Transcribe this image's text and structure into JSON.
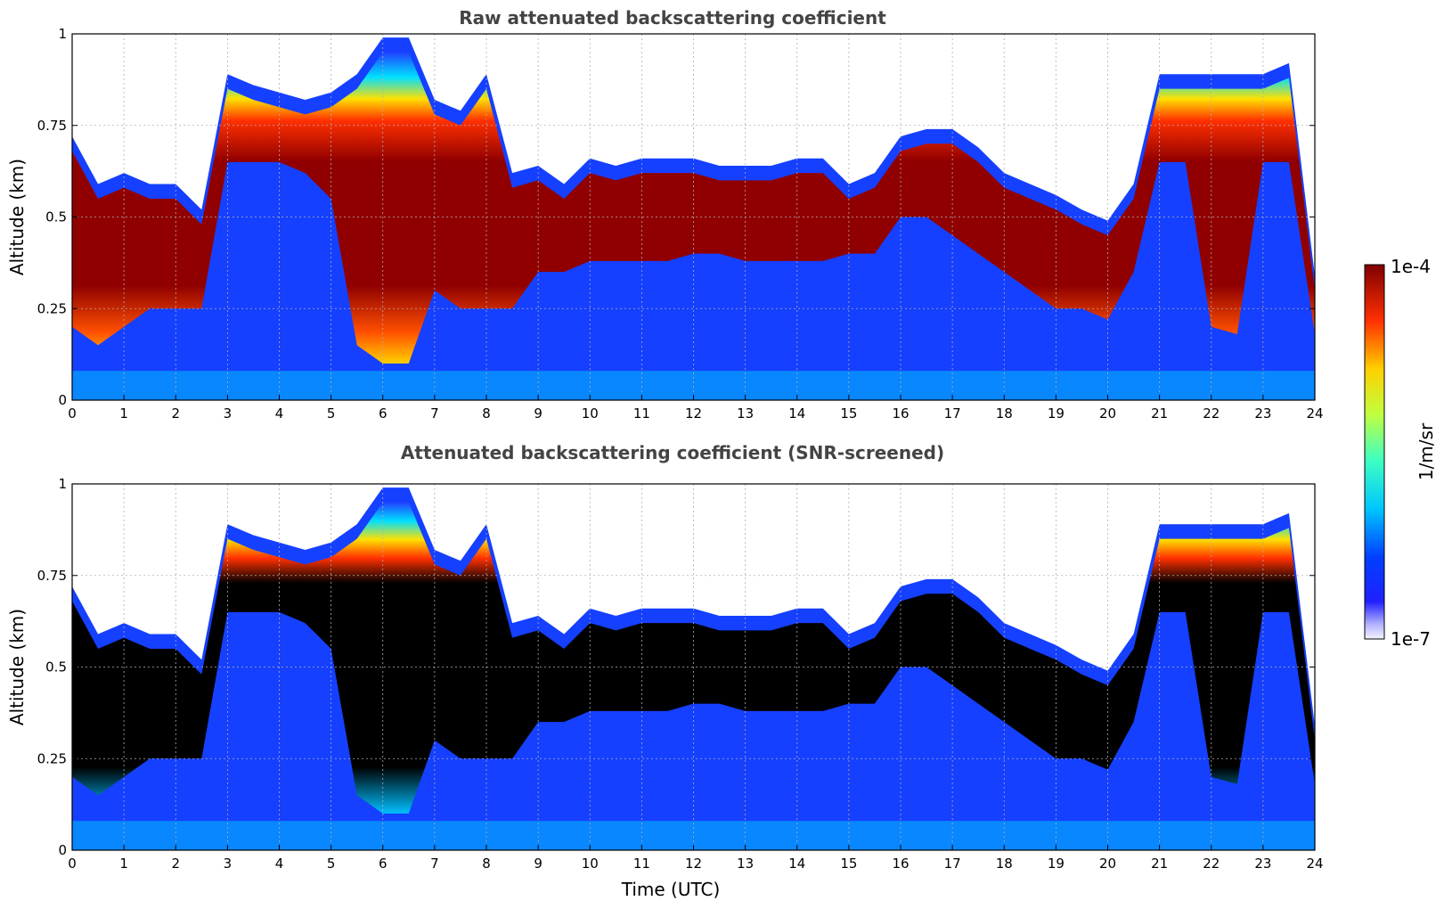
{
  "chart_data": [
    {
      "type": "heatmap",
      "title": "Raw attenuated backscattering coefficient",
      "xlabel": "",
      "ylabel": "Altitude (km)",
      "xlim": [
        0,
        24
      ],
      "ylim": [
        0,
        1
      ],
      "x_ticks": [
        0,
        1,
        2,
        3,
        4,
        5,
        6,
        7,
        8,
        9,
        10,
        11,
        12,
        13,
        14,
        15,
        16,
        17,
        18,
        19,
        20,
        21,
        22,
        23,
        24
      ],
      "y_ticks": [
        "0",
        "0.25",
        "0.5",
        "0.75",
        "1"
      ],
      "y_tick_values": [
        0,
        0.25,
        0.5,
        0.75,
        1
      ],
      "grid": true,
      "cloud_layer": {
        "x": [
          0,
          0.5,
          1,
          1.5,
          2,
          2.5,
          3,
          3.5,
          4,
          4.5,
          5,
          5.5,
          6,
          6.5,
          7,
          7.5,
          8,
          8.5,
          9,
          9.5,
          10,
          10.5,
          11,
          11.5,
          12,
          12.5,
          13,
          13.5,
          14,
          14.5,
          15,
          15.5,
          16,
          16.5,
          17,
          17.5,
          18,
          18.5,
          19,
          19.5,
          20,
          20.5,
          21,
          21.5,
          22,
          22.5,
          23,
          23.5,
          24
        ],
        "top_km": [
          0.68,
          0.55,
          0.58,
          0.55,
          0.55,
          0.48,
          0.85,
          0.82,
          0.8,
          0.78,
          0.8,
          0.85,
          0.95,
          0.95,
          0.78,
          0.75,
          0.85,
          0.58,
          0.6,
          0.55,
          0.62,
          0.6,
          0.62,
          0.62,
          0.62,
          0.6,
          0.6,
          0.6,
          0.62,
          0.62,
          0.55,
          0.58,
          0.68,
          0.7,
          0.7,
          0.65,
          0.58,
          0.55,
          0.52,
          0.48,
          0.45,
          0.55,
          0.85,
          0.85,
          0.85,
          0.85,
          0.85,
          0.88,
          0.3
        ],
        "base_km": [
          0.2,
          0.15,
          0.2,
          0.25,
          0.25,
          0.25,
          0.65,
          0.65,
          0.65,
          0.62,
          0.55,
          0.15,
          0.1,
          0.1,
          0.3,
          0.25,
          0.25,
          0.25,
          0.35,
          0.35,
          0.38,
          0.38,
          0.38,
          0.38,
          0.4,
          0.4,
          0.38,
          0.38,
          0.38,
          0.38,
          0.4,
          0.4,
          0.5,
          0.5,
          0.45,
          0.4,
          0.35,
          0.3,
          0.25,
          0.25,
          0.22,
          0.35,
          0.65,
          0.65,
          0.2,
          0.18,
          0.65,
          0.65,
          0.18
        ]
      }
    },
    {
      "type": "heatmap",
      "title": "Attenuated backscattering coefficient (SNR-screened)",
      "xlabel": "Time (UTC)",
      "ylabel": "Altitude (km)",
      "xlim": [
        0,
        24
      ],
      "ylim": [
        0,
        1
      ],
      "x_ticks": [
        0,
        1,
        2,
        3,
        4,
        5,
        6,
        7,
        8,
        9,
        10,
        11,
        12,
        13,
        14,
        15,
        16,
        17,
        18,
        19,
        20,
        21,
        22,
        23,
        24
      ],
      "y_ticks": [
        "0",
        "0.25",
        "0.5",
        "0.75",
        "1"
      ],
      "y_tick_values": [
        0,
        0.25,
        0.5,
        0.75,
        1
      ],
      "grid": true,
      "cloud_layer": {
        "x": [
          0,
          0.5,
          1,
          1.5,
          2,
          2.5,
          3,
          3.5,
          4,
          4.5,
          5,
          5.5,
          6,
          6.5,
          7,
          7.5,
          8,
          8.5,
          9,
          9.5,
          10,
          10.5,
          11,
          11.5,
          12,
          12.5,
          13,
          13.5,
          14,
          14.5,
          15,
          15.5,
          16,
          16.5,
          17,
          17.5,
          18,
          18.5,
          19,
          19.5,
          20,
          20.5,
          21,
          21.5,
          22,
          22.5,
          23,
          23.5,
          24
        ],
        "top_km": [
          0.68,
          0.55,
          0.58,
          0.55,
          0.55,
          0.48,
          0.85,
          0.82,
          0.8,
          0.78,
          0.8,
          0.85,
          0.95,
          0.95,
          0.78,
          0.75,
          0.85,
          0.58,
          0.6,
          0.55,
          0.62,
          0.6,
          0.62,
          0.62,
          0.62,
          0.6,
          0.6,
          0.6,
          0.62,
          0.62,
          0.55,
          0.58,
          0.68,
          0.7,
          0.7,
          0.65,
          0.58,
          0.55,
          0.52,
          0.48,
          0.45,
          0.55,
          0.85,
          0.85,
          0.85,
          0.85,
          0.85,
          0.88,
          0.3
        ],
        "base_km": [
          0.2,
          0.15,
          0.2,
          0.25,
          0.25,
          0.25,
          0.65,
          0.65,
          0.65,
          0.62,
          0.55,
          0.15,
          0.1,
          0.1,
          0.3,
          0.25,
          0.25,
          0.25,
          0.35,
          0.35,
          0.38,
          0.38,
          0.38,
          0.38,
          0.4,
          0.4,
          0.38,
          0.38,
          0.38,
          0.38,
          0.4,
          0.4,
          0.5,
          0.5,
          0.45,
          0.4,
          0.35,
          0.3,
          0.25,
          0.25,
          0.22,
          0.35,
          0.65,
          0.65,
          0.2,
          0.18,
          0.65,
          0.65,
          0.18
        ]
      }
    }
  ],
  "colorbar": {
    "label": "1/m/sr",
    "max_label": "1e-4",
    "min_label": "1e-7",
    "scale": "log",
    "range": [
      1e-07,
      0.0001
    ],
    "colormap": "jet"
  }
}
